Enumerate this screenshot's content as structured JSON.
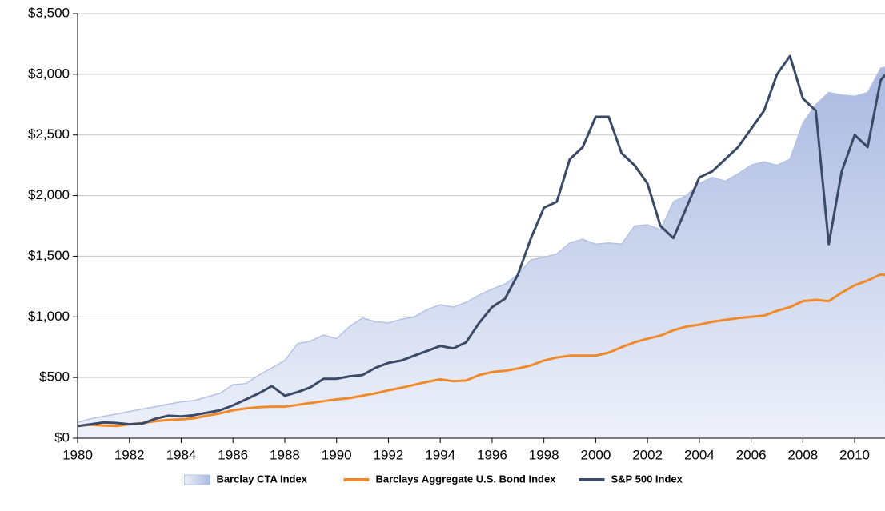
{
  "chart_data": {
    "type": "line",
    "x": [
      1980,
      1980.5,
      1981,
      1981.5,
      1982,
      1982.5,
      1983,
      1983.5,
      1984,
      1984.5,
      1985,
      1985.5,
      1986,
      1986.5,
      1987,
      1987.5,
      1988,
      1988.5,
      1989,
      1989.5,
      1990,
      1990.5,
      1991,
      1991.5,
      1992,
      1992.5,
      1993,
      1993.5,
      1994,
      1994.5,
      1995,
      1995.5,
      1996,
      1996.5,
      1997,
      1997.5,
      1998,
      1998.5,
      1999,
      1999.5,
      2000,
      2000.5,
      2001,
      2001.5,
      2002,
      2002.5,
      2003,
      2003.5,
      2004,
      2004.5,
      2005,
      2005.5,
      2006,
      2006.5,
      2007,
      2007.5,
      2008,
      2008.5,
      2009,
      2009.5,
      2010,
      2010.5,
      2011,
      2011.2
    ],
    "series": [
      {
        "name": "Barclay CTA Index",
        "color": "#b4c3e4",
        "style": "area",
        "values": [
          130,
          160,
          180,
          200,
          220,
          240,
          260,
          280,
          300,
          310,
          340,
          370,
          440,
          450,
          520,
          580,
          640,
          780,
          800,
          850,
          820,
          920,
          990,
          960,
          950,
          980,
          1000,
          1060,
          1100,
          1080,
          1120,
          1180,
          1230,
          1270,
          1350,
          1470,
          1490,
          1520,
          1610,
          1640,
          1600,
          1610,
          1600,
          1750,
          1760,
          1720,
          1950,
          2000,
          2100,
          2150,
          2120,
          2180,
          2250,
          2280,
          2250,
          2300,
          2600,
          2750,
          2850,
          2830,
          2820,
          2850,
          3050,
          3060
        ]
      },
      {
        "name": "Barclays Aggregate U.S. Bond Index",
        "color": "#f0892a",
        "style": "line",
        "values": [
          100,
          110,
          105,
          100,
          115,
          125,
          140,
          150,
          155,
          165,
          185,
          205,
          230,
          245,
          255,
          260,
          260,
          275,
          290,
          305,
          320,
          330,
          350,
          370,
          395,
          415,
          440,
          465,
          485,
          470,
          475,
          520,
          545,
          555,
          575,
          600,
          640,
          665,
          680,
          680,
          680,
          705,
          750,
          790,
          820,
          845,
          890,
          920,
          935,
          960,
          975,
          990,
          1000,
          1010,
          1050,
          1080,
          1130,
          1140,
          1130,
          1200,
          1260,
          1300,
          1350,
          1345
        ]
      },
      {
        "name": "S&P 500 Index",
        "color": "#3b4a66",
        "style": "line",
        "values": [
          100,
          115,
          130,
          125,
          115,
          120,
          160,
          185,
          180,
          190,
          210,
          230,
          270,
          320,
          370,
          430,
          350,
          380,
          420,
          490,
          490,
          510,
          520,
          580,
          620,
          640,
          680,
          720,
          760,
          740,
          790,
          950,
          1080,
          1150,
          1350,
          1650,
          1900,
          1950,
          2300,
          2400,
          2650,
          2650,
          2350,
          2250,
          2100,
          1750,
          1650,
          1900,
          2150,
          2200,
          2300,
          2400,
          2550,
          2700,
          3000,
          3150,
          2800,
          2700,
          1600,
          2200,
          2500,
          2400,
          2950,
          3000
        ]
      }
    ],
    "xlim": [
      1980,
      2011.2
    ],
    "xticks": [
      1980,
      1982,
      1984,
      1986,
      1988,
      1990,
      1992,
      1994,
      1996,
      1998,
      2000,
      2002,
      2004,
      2006,
      2008,
      2010
    ],
    "ylim": [
      0,
      3500
    ],
    "yticks": [
      {
        "value": 0,
        "label": "$0"
      },
      {
        "value": 500,
        "label": "$500"
      },
      {
        "value": 1000,
        "label": "$1,000"
      },
      {
        "value": 1500,
        "label": "$1,500"
      },
      {
        "value": 2000,
        "label": "$2,000"
      },
      {
        "value": 2500,
        "label": "$2,500"
      },
      {
        "value": 3000,
        "label": "$3,000"
      },
      {
        "value": 3500,
        "label": "$3,500"
      }
    ],
    "grid": true,
    "legend": "bottom"
  }
}
